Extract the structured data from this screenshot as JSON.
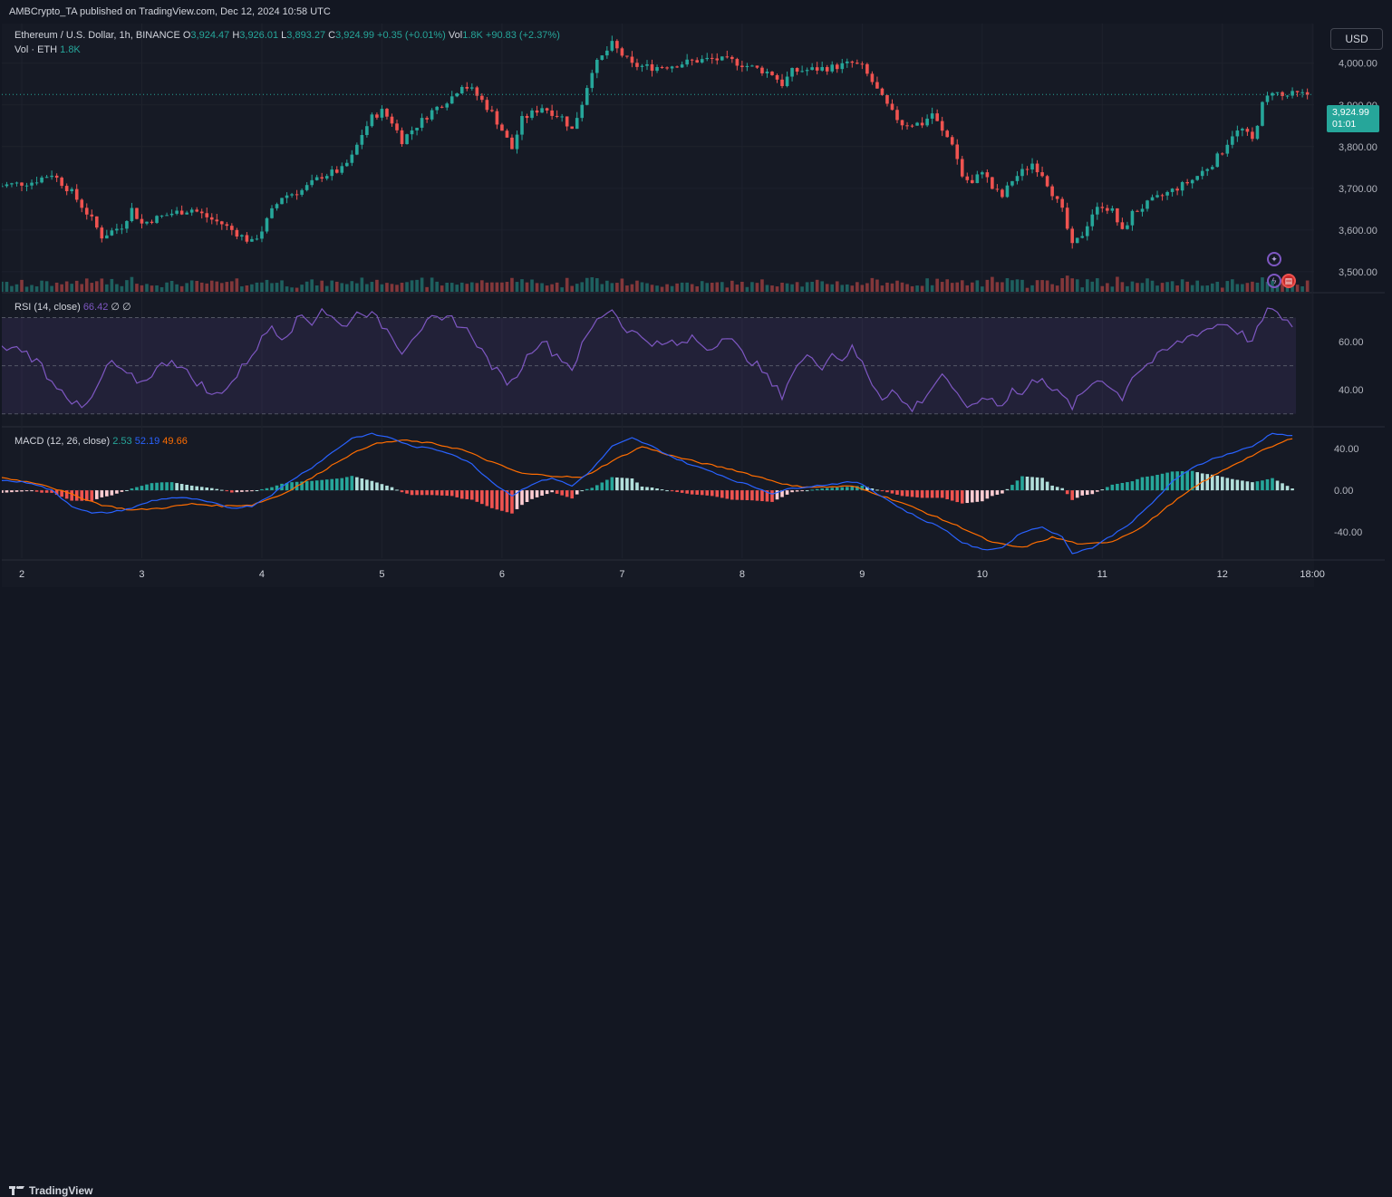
{
  "header": {
    "published": "AMBCrypto_TA published on TradingView.com, Dec 12, 2024 10:58 UTC"
  },
  "legend": {
    "symbol": "Ethereum / U.S. Dollar, 1h, BINANCE",
    "o_label": "O",
    "o_value": "3,924.47",
    "h_label": "H",
    "h_value": "3,926.01",
    "l_label": "L",
    "l_value": "3,893.27",
    "c_label": "C",
    "c_value": "3,924.99",
    "change": "+0.35 (+0.01%)",
    "vol_label": "Vol",
    "vol_value": "1.8K",
    "vol_change": "+90.83 (+2.37%)",
    "vol_series_label": "Vol · ETH",
    "vol_series_value": "1.8K"
  },
  "rsi_legend": {
    "label": "RSI (14, close)",
    "value": "66.42",
    "extra": "∅ ∅"
  },
  "macd_legend": {
    "label": "MACD (12, 26, close)",
    "hist": "2.53",
    "macd": "52.19",
    "signal": "49.66"
  },
  "currency_button": "USD",
  "price_tag": {
    "price": "3,924.99",
    "countdown": "01:01"
  },
  "footer": {
    "brand": "TradingView"
  },
  "colors": {
    "up": "#26a69a",
    "down": "#ef5350",
    "rsi": "#7e57c2",
    "macd": "#2962ff",
    "signal": "#ff6d00"
  },
  "chart_data": {
    "type": "candlestick",
    "price_axis": {
      "ticks": [
        "4,000.00",
        "3,900.00",
        "3,800.00",
        "3,700.00",
        "3,600.00",
        "3,500.00"
      ],
      "values": [
        4000,
        3900,
        3800,
        3700,
        3600,
        3500
      ],
      "ylim": [
        3452,
        4095
      ]
    },
    "rsi_axis": {
      "ticks": [
        "60.00",
        "40.00"
      ],
      "values": [
        60,
        40
      ],
      "band": [
        30,
        70
      ],
      "ylim": [
        25,
        80
      ]
    },
    "macd_axis": {
      "ticks": [
        "40.00",
        "0.00",
        "-40.00"
      ],
      "values": [
        40,
        0,
        -40
      ],
      "ylim": [
        -65,
        60
      ]
    },
    "x_axis": {
      "ticks": [
        "2",
        "3",
        "4",
        "5",
        "6",
        "7",
        "8",
        "9",
        "10",
        "11",
        "12",
        "18:00"
      ],
      "tick_hours": [
        0,
        24,
        48,
        72,
        96,
        120,
        144,
        168,
        192,
        216,
        240,
        258
      ]
    },
    "hours_shown": 263,
    "price_anchors": [
      [
        -5,
        3705
      ],
      [
        2,
        3715
      ],
      [
        6,
        3735
      ],
      [
        10,
        3690
      ],
      [
        14,
        3625
      ],
      [
        16,
        3585
      ],
      [
        20,
        3610
      ],
      [
        22,
        3650
      ],
      [
        24,
        3615
      ],
      [
        26,
        3625
      ],
      [
        30,
        3640
      ],
      [
        34,
        3650
      ],
      [
        38,
        3625
      ],
      [
        40,
        3615
      ],
      [
        42,
        3600
      ],
      [
        44,
        3585
      ],
      [
        46,
        3570
      ],
      [
        48,
        3600
      ],
      [
        50,
        3645
      ],
      [
        52,
        3680
      ],
      [
        56,
        3695
      ],
      [
        60,
        3730
      ],
      [
        64,
        3745
      ],
      [
        66,
        3775
      ],
      [
        68,
        3830
      ],
      [
        70,
        3870
      ],
      [
        72,
        3885
      ],
      [
        74,
        3860
      ],
      [
        76,
        3815
      ],
      [
        78,
        3840
      ],
      [
        82,
        3885
      ],
      [
        86,
        3920
      ],
      [
        88,
        3950
      ],
      [
        90,
        3935
      ],
      [
        92,
        3910
      ],
      [
        94,
        3880
      ],
      [
        96,
        3840
      ],
      [
        98,
        3795
      ],
      [
        100,
        3865
      ],
      [
        104,
        3895
      ],
      [
        108,
        3870
      ],
      [
        110,
        3840
      ],
      [
        112,
        3905
      ],
      [
        114,
        3985
      ],
      [
        116,
        4015
      ],
      [
        118,
        4045
      ],
      [
        120,
        4020
      ],
      [
        122,
        3995
      ],
      [
        126,
        3990
      ],
      [
        130,
        3995
      ],
      [
        134,
        4005
      ],
      [
        138,
        4010
      ],
      [
        142,
        4005
      ],
      [
        146,
        3990
      ],
      [
        150,
        3975
      ],
      [
        152,
        3950
      ],
      [
        154,
        3980
      ],
      [
        158,
        3985
      ],
      [
        162,
        3990
      ],
      [
        166,
        4000
      ],
      [
        168,
        3990
      ],
      [
        170,
        3955
      ],
      [
        172,
        3915
      ],
      [
        174,
        3880
      ],
      [
        176,
        3855
      ],
      [
        180,
        3855
      ],
      [
        182,
        3880
      ],
      [
        184,
        3835
      ],
      [
        186,
        3810
      ],
      [
        188,
        3730
      ],
      [
        190,
        3710
      ],
      [
        192,
        3745
      ],
      [
        194,
        3700
      ],
      [
        196,
        3680
      ],
      [
        198,
        3720
      ],
      [
        200,
        3740
      ],
      [
        202,
        3760
      ],
      [
        204,
        3735
      ],
      [
        206,
        3690
      ],
      [
        208,
        3645
      ],
      [
        210,
        3560
      ],
      [
        212,
        3590
      ],
      [
        214,
        3640
      ],
      [
        216,
        3660
      ],
      [
        218,
        3645
      ],
      [
        220,
        3595
      ],
      [
        222,
        3640
      ],
      [
        226,
        3670
      ],
      [
        230,
        3695
      ],
      [
        234,
        3720
      ],
      [
        238,
        3760
      ],
      [
        240,
        3790
      ],
      [
        242,
        3830
      ],
      [
        244,
        3840
      ],
      [
        246,
        3815
      ],
      [
        248,
        3900
      ],
      [
        250,
        3935
      ],
      [
        252,
        3920
      ],
      [
        254,
        3925
      ]
    ],
    "rsi_anchors": [
      [
        -5,
        57
      ],
      [
        0,
        57
      ],
      [
        4,
        50
      ],
      [
        6,
        43
      ],
      [
        8,
        41
      ],
      [
        10,
        35
      ],
      [
        12,
        32
      ],
      [
        14,
        36
      ],
      [
        16,
        45
      ],
      [
        18,
        52
      ],
      [
        20,
        47
      ],
      [
        24,
        43
      ],
      [
        26,
        47
      ],
      [
        30,
        53
      ],
      [
        32,
        49
      ],
      [
        34,
        45
      ],
      [
        36,
        42
      ],
      [
        38,
        37
      ],
      [
        40,
        40
      ],
      [
        42,
        43
      ],
      [
        44,
        49
      ],
      [
        46,
        55
      ],
      [
        48,
        61
      ],
      [
        50,
        67
      ],
      [
        52,
        62
      ],
      [
        54,
        66
      ],
      [
        56,
        71
      ],
      [
        58,
        68
      ],
      [
        60,
        74
      ],
      [
        62,
        70
      ],
      [
        64,
        66
      ],
      [
        66,
        70
      ],
      [
        68,
        73
      ],
      [
        70,
        71
      ],
      [
        72,
        67
      ],
      [
        74,
        63
      ],
      [
        76,
        56
      ],
      [
        78,
        62
      ],
      [
        80,
        66
      ],
      [
        82,
        69
      ],
      [
        84,
        68
      ],
      [
        86,
        70
      ],
      [
        88,
        66
      ],
      [
        90,
        63
      ],
      [
        92,
        56
      ],
      [
        94,
        50
      ],
      [
        96,
        45
      ],
      [
        98,
        43
      ],
      [
        100,
        50
      ],
      [
        102,
        57
      ],
      [
        104,
        61
      ],
      [
        106,
        56
      ],
      [
        108,
        53
      ],
      [
        110,
        49
      ],
      [
        112,
        58
      ],
      [
        114,
        66
      ],
      [
        116,
        71
      ],
      [
        118,
        74
      ],
      [
        120,
        67
      ],
      [
        122,
        64
      ],
      [
        124,
        62
      ],
      [
        126,
        60
      ],
      [
        128,
        58
      ],
      [
        130,
        60
      ],
      [
        132,
        58
      ],
      [
        134,
        62
      ],
      [
        136,
        59
      ],
      [
        138,
        57
      ],
      [
        140,
        63
      ],
      [
        142,
        60
      ],
      [
        144,
        55
      ],
      [
        146,
        52
      ],
      [
        148,
        48
      ],
      [
        150,
        42
      ],
      [
        152,
        38
      ],
      [
        154,
        47
      ],
      [
        156,
        52
      ],
      [
        158,
        54
      ],
      [
        160,
        50
      ],
      [
        162,
        55
      ],
      [
        164,
        53
      ],
      [
        166,
        57
      ],
      [
        168,
        51
      ],
      [
        170,
        43
      ],
      [
        172,
        37
      ],
      [
        174,
        40
      ],
      [
        176,
        35
      ],
      [
        178,
        32
      ],
      [
        180,
        36
      ],
      [
        182,
        41
      ],
      [
        184,
        47
      ],
      [
        186,
        39
      ],
      [
        188,
        36
      ],
      [
        190,
        32
      ],
      [
        192,
        37
      ],
      [
        194,
        36
      ],
      [
        196,
        34
      ],
      [
        198,
        40
      ],
      [
        200,
        38
      ],
      [
        202,
        43
      ],
      [
        204,
        46
      ],
      [
        206,
        40
      ],
      [
        208,
        37
      ],
      [
        210,
        33
      ],
      [
        212,
        38
      ],
      [
        214,
        43
      ],
      [
        216,
        45
      ],
      [
        218,
        40
      ],
      [
        220,
        37
      ],
      [
        222,
        46
      ],
      [
        226,
        52
      ],
      [
        230,
        58
      ],
      [
        234,
        63
      ],
      [
        238,
        66
      ],
      [
        240,
        68
      ],
      [
        242,
        66
      ],
      [
        244,
        63
      ],
      [
        246,
        60
      ],
      [
        248,
        69
      ],
      [
        250,
        75
      ],
      [
        252,
        68
      ],
      [
        254,
        67
      ]
    ],
    "macd_anchors": [
      [
        -5,
        10
      ],
      [
        2,
        7
      ],
      [
        6,
        0
      ],
      [
        10,
        -15
      ],
      [
        14,
        -22
      ],
      [
        18,
        -21
      ],
      [
        22,
        -17
      ],
      [
        26,
        -10
      ],
      [
        30,
        -7
      ],
      [
        34,
        -8
      ],
      [
        38,
        -12
      ],
      [
        42,
        -17
      ],
      [
        46,
        -15
      ],
      [
        50,
        -4
      ],
      [
        54,
        10
      ],
      [
        58,
        22
      ],
      [
        62,
        36
      ],
      [
        66,
        50
      ],
      [
        70,
        54
      ],
      [
        74,
        50
      ],
      [
        78,
        42
      ],
      [
        82,
        40
      ],
      [
        86,
        35
      ],
      [
        90,
        25
      ],
      [
        94,
        8
      ],
      [
        98,
        -5
      ],
      [
        102,
        6
      ],
      [
        106,
        12
      ],
      [
        110,
        4
      ],
      [
        114,
        20
      ],
      [
        118,
        42
      ],
      [
        122,
        50
      ],
      [
        126,
        42
      ],
      [
        130,
        32
      ],
      [
        134,
        24
      ],
      [
        138,
        18
      ],
      [
        142,
        10
      ],
      [
        146,
        4
      ],
      [
        150,
        -3
      ],
      [
        154,
        2
      ],
      [
        158,
        4
      ],
      [
        162,
        6
      ],
      [
        166,
        8
      ],
      [
        168,
        6
      ],
      [
        172,
        -6
      ],
      [
        176,
        -18
      ],
      [
        180,
        -28
      ],
      [
        184,
        -36
      ],
      [
        188,
        -50
      ],
      [
        192,
        -57
      ],
      [
        196,
        -55
      ],
      [
        200,
        -40
      ],
      [
        204,
        -35
      ],
      [
        208,
        -45
      ],
      [
        210,
        -60
      ],
      [
        214,
        -55
      ],
      [
        218,
        -43
      ],
      [
        222,
        -30
      ],
      [
        226,
        -12
      ],
      [
        230,
        8
      ],
      [
        234,
        22
      ],
      [
        238,
        30
      ],
      [
        242,
        36
      ],
      [
        246,
        42
      ],
      [
        250,
        55
      ],
      [
        254,
        52
      ]
    ],
    "signal_anchors": [
      [
        -5,
        13
      ],
      [
        4,
        6
      ],
      [
        10,
        -4
      ],
      [
        16,
        -14
      ],
      [
        22,
        -19
      ],
      [
        28,
        -17
      ],
      [
        34,
        -13
      ],
      [
        40,
        -15
      ],
      [
        46,
        -14
      ],
      [
        52,
        -4
      ],
      [
        58,
        12
      ],
      [
        64,
        30
      ],
      [
        70,
        44
      ],
      [
        76,
        48
      ],
      [
        82,
        45
      ],
      [
        88,
        39
      ],
      [
        94,
        27
      ],
      [
        100,
        16
      ],
      [
        106,
        14
      ],
      [
        112,
        12
      ],
      [
        118,
        28
      ],
      [
        124,
        42
      ],
      [
        130,
        33
      ],
      [
        136,
        26
      ],
      [
        142,
        20
      ],
      [
        148,
        12
      ],
      [
        154,
        4
      ],
      [
        160,
        3
      ],
      [
        166,
        4
      ],
      [
        170,
        -2
      ],
      [
        176,
        -12
      ],
      [
        182,
        -24
      ],
      [
        188,
        -36
      ],
      [
        194,
        -50
      ],
      [
        200,
        -55
      ],
      [
        206,
        -45
      ],
      [
        212,
        -52
      ],
      [
        218,
        -49
      ],
      [
        224,
        -35
      ],
      [
        230,
        -12
      ],
      [
        236,
        8
      ],
      [
        242,
        24
      ],
      [
        248,
        38
      ],
      [
        254,
        50
      ]
    ]
  }
}
